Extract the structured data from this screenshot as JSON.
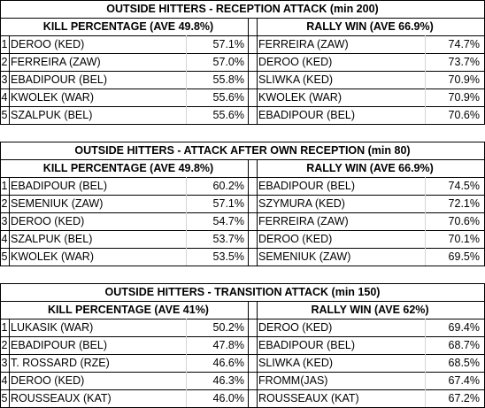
{
  "sections": [
    {
      "title": "OUTSIDE HITTERS - RECEPTION ATTACK (min 200)",
      "left_header": "KILL PERCENTAGE (AVE  49.8%)",
      "right_header": "RALLY WIN (AVE 66.9%)",
      "rows": [
        {
          "rank": "1",
          "left_name": "DEROO (KED)",
          "left_value": "57.1%",
          "right_name": "FERREIRA (ZAW)",
          "right_value": "74.7%"
        },
        {
          "rank": "2",
          "left_name": "FERREIRA (ZAW)",
          "left_value": "57.0%",
          "right_name": "DEROO (KED)",
          "right_value": "73.7%"
        },
        {
          "rank": "3",
          "left_name": "EBADIPOUR (BEL)",
          "left_value": "55.8%",
          "right_name": "SLIWKA (KED)",
          "right_value": "70.9%"
        },
        {
          "rank": "4",
          "left_name": "KWOLEK (WAR)",
          "left_value": "55.6%",
          "right_name": "KWOLEK (WAR)",
          "right_value": "70.9%"
        },
        {
          "rank": "5",
          "left_name": "SZALPUK (BEL)",
          "left_value": "55.6%",
          "right_name": "EBADIPOUR (BEL)",
          "right_value": "70.6%"
        }
      ]
    },
    {
      "title": "OUTSIDE HITTERS - ATTACK AFTER OWN RECEPTION (min 80)",
      "left_header": "KILL PERCENTAGE (AVE  49.8%)",
      "right_header": "RALLY WIN (AVE 66.9%)",
      "rows": [
        {
          "rank": "1",
          "left_name": "EBADIPOUR (BEL)",
          "left_value": "60.2%",
          "right_name": "EBADIPOUR (BEL)",
          "right_value": "74.5%"
        },
        {
          "rank": "2",
          "left_name": "SEMENIUK (ZAW)",
          "left_value": "57.1%",
          "right_name": "SZYMURA (KED)",
          "right_value": "72.1%"
        },
        {
          "rank": "3",
          "left_name": "DEROO (KED)",
          "left_value": "54.7%",
          "right_name": "FERREIRA (ZAW)",
          "right_value": "70.6%"
        },
        {
          "rank": "4",
          "left_name": "SZALPUK (BEL)",
          "left_value": "53.7%",
          "right_name": "DEROO (KED)",
          "right_value": "70.1%"
        },
        {
          "rank": "5",
          "left_name": "KWOLEK (WAR)",
          "left_value": "53.5%",
          "right_name": "SEMENIUK (ZAW)",
          "right_value": "69.5%"
        }
      ]
    },
    {
      "title": "OUTSIDE HITTERS - TRANSITION ATTACK (min 150)",
      "left_header": "KILL PERCENTAGE (AVE  41%)",
      "right_header": "RALLY WIN (AVE 62%)",
      "rows": [
        {
          "rank": "1",
          "left_name": "LUKASIK (WAR)",
          "left_value": "50.2%",
          "right_name": "DEROO (KED)",
          "right_value": "69.4%"
        },
        {
          "rank": "2",
          "left_name": "EBADIPOUR (BEL)",
          "left_value": "47.8%",
          "right_name": "EBADIPOUR (BEL)",
          "right_value": "68.7%"
        },
        {
          "rank": "3",
          "left_name": "T. ROSSARD (RZE)",
          "left_value": "46.6%",
          "right_name": "SLIWKA (KED)",
          "right_value": "68.5%"
        },
        {
          "rank": "4",
          "left_name": "DEROO (KED)",
          "left_value": "46.3%",
          "right_name": "FROMM(JAS)",
          "right_value": "67.4%"
        },
        {
          "rank": "5",
          "left_name": "ROUSSEAUX (KAT)",
          "left_value": "46.0%",
          "right_name": "ROUSSEAUX (KAT)",
          "right_value": "67.2%"
        }
      ]
    }
  ]
}
